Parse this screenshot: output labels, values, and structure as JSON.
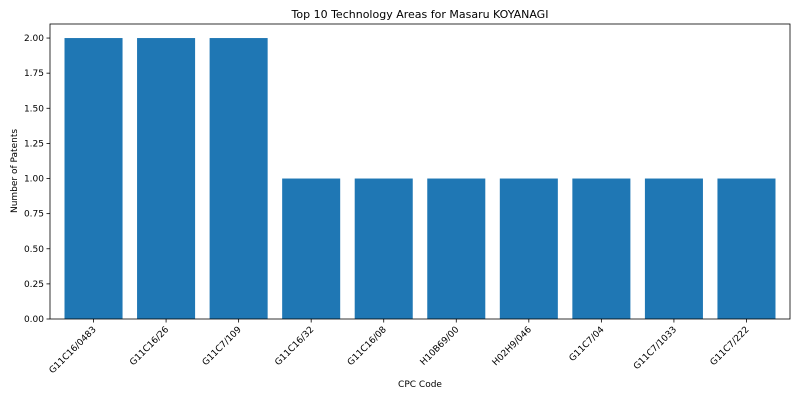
{
  "chart_data": {
    "type": "bar",
    "title": "Top 10 Technology Areas for Masaru KOYANAGI",
    "xlabel": "CPC Code",
    "ylabel": "Number of Patents",
    "categories": [
      "G11C16/0483",
      "G11C16/26",
      "G11C7/109",
      "G11C16/32",
      "G11C16/08",
      "H10B69/00",
      "H02H9/046",
      "G11C7/04",
      "G11C7/1033",
      "G11C7/222"
    ],
    "values": [
      2,
      2,
      2,
      1,
      1,
      1,
      1,
      1,
      1,
      1
    ],
    "ylim": [
      0,
      2.1
    ],
    "yticks": [
      "0.00",
      "0.25",
      "0.50",
      "0.75",
      "1.00",
      "1.25",
      "1.50",
      "1.75",
      "2.00"
    ],
    "bar_color": "#1f77b4",
    "grid": false,
    "legend": "none"
  }
}
